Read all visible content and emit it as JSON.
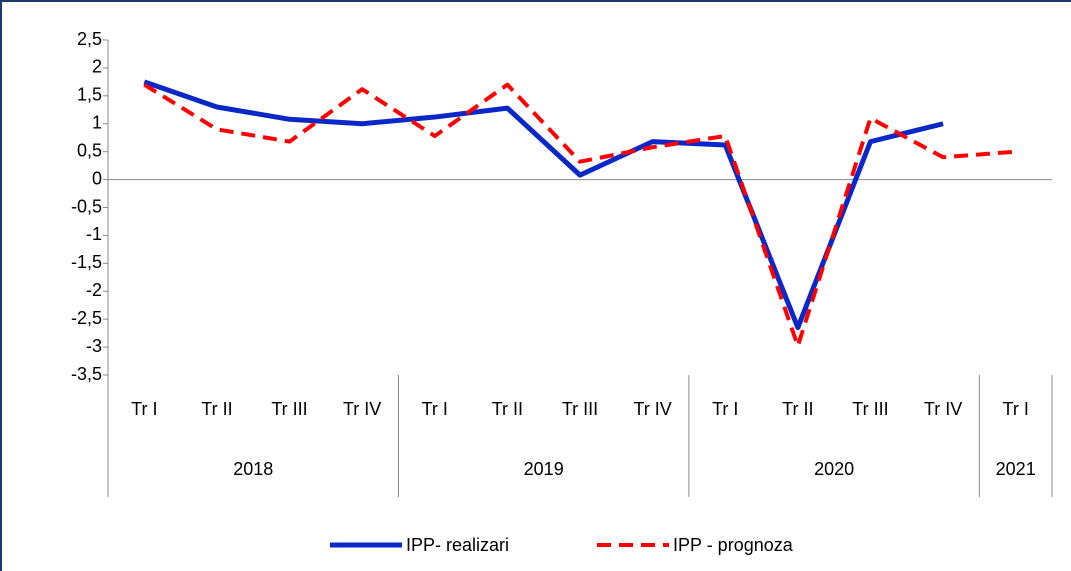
{
  "chart_data": {
    "type": "line",
    "groups": [
      {
        "name": "2018",
        "categories": [
          "Tr I",
          "Tr II",
          "Tr III",
          "Tr IV"
        ]
      },
      {
        "name": "2019",
        "categories": [
          "Tr I",
          "Tr II",
          "Tr III",
          "Tr IV"
        ]
      },
      {
        "name": "2020",
        "categories": [
          "Tr I",
          "Tr II",
          "Tr III",
          "Tr IV"
        ]
      },
      {
        "name": "2021",
        "categories": [
          "Tr I"
        ]
      }
    ],
    "series": [
      {
        "name": "IPP- realizari",
        "color": "#0a28c8",
        "dash": false,
        "values": [
          1.75,
          1.3,
          1.08,
          1.0,
          1.12,
          1.28,
          0.08,
          0.68,
          0.62,
          -2.65,
          0.68,
          1.0,
          null
        ]
      },
      {
        "name": "IPP - prognoza",
        "color": "#ff0000",
        "dash": true,
        "values": [
          1.7,
          0.9,
          0.68,
          1.62,
          0.78,
          1.7,
          0.32,
          0.58,
          0.78,
          -2.98,
          1.1,
          0.4,
          0.5
        ]
      }
    ],
    "ylim": [
      -3.5,
      2.5
    ],
    "yticks": [
      {
        "value": 2.5,
        "label": "2,5"
      },
      2,
      {
        "value": 1.5,
        "label": "1,5"
      },
      1,
      {
        "value": 0.5,
        "label": "0,5"
      },
      0,
      {
        "value": -0.5,
        "label": "-0,5"
      },
      -1,
      {
        "value": -1.5,
        "label": "-1,5"
      },
      -2,
      {
        "value": -2.5,
        "label": "-2,5"
      },
      -3,
      {
        "value": -3.5,
        "label": "-3,5"
      }
    ],
    "grid": false,
    "legend": "bottom"
  }
}
